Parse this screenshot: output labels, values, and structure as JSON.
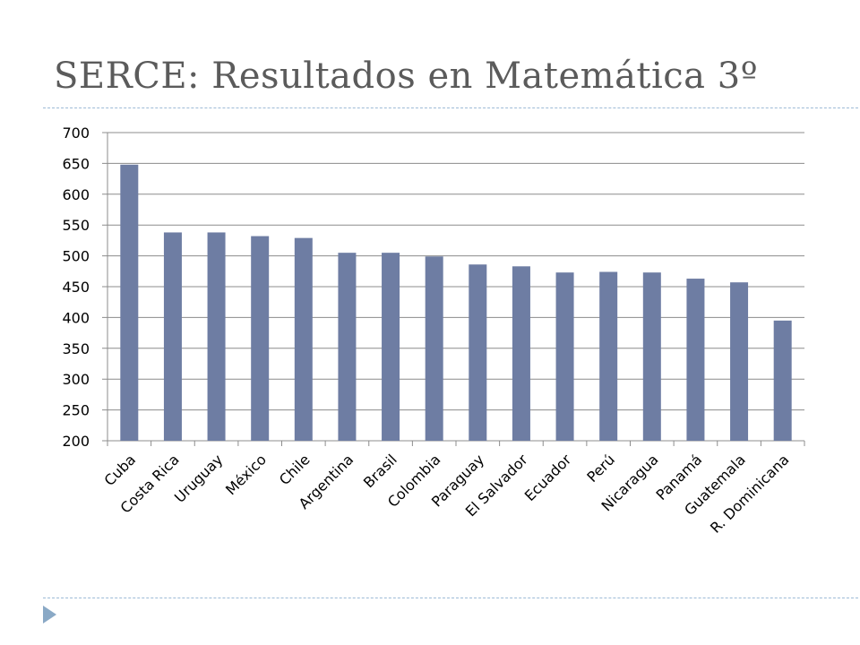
{
  "slide": {
    "title": "SERCE: Resultados en Matemática 3º"
  },
  "colors": {
    "bar": "#6e7da3",
    "grid": "#8c8c8c",
    "rule": "#9dbbd6",
    "bullet": "#8aa9c6"
  },
  "chart_data": {
    "type": "bar",
    "categories": [
      "Cuba",
      "Costa Rica",
      "Uruguay",
      "México",
      "Chile",
      "Argentina",
      "Brasil",
      "Colombia",
      "Paraguay",
      "El Salvador",
      "Ecuador",
      "Perú",
      "Nicaragua",
      "Panamá",
      "Guatemala",
      "R. Dominicana"
    ],
    "values": [
      648,
      538,
      538,
      532,
      529,
      505,
      505,
      499,
      486,
      483,
      473,
      474,
      473,
      463,
      457,
      395
    ],
    "yticks": [
      "200",
      "250",
      "300",
      "350",
      "400",
      "450",
      "500",
      "550",
      "600",
      "650",
      "700"
    ],
    "ylim": [
      200,
      700
    ],
    "grid": true,
    "legend": "none"
  }
}
